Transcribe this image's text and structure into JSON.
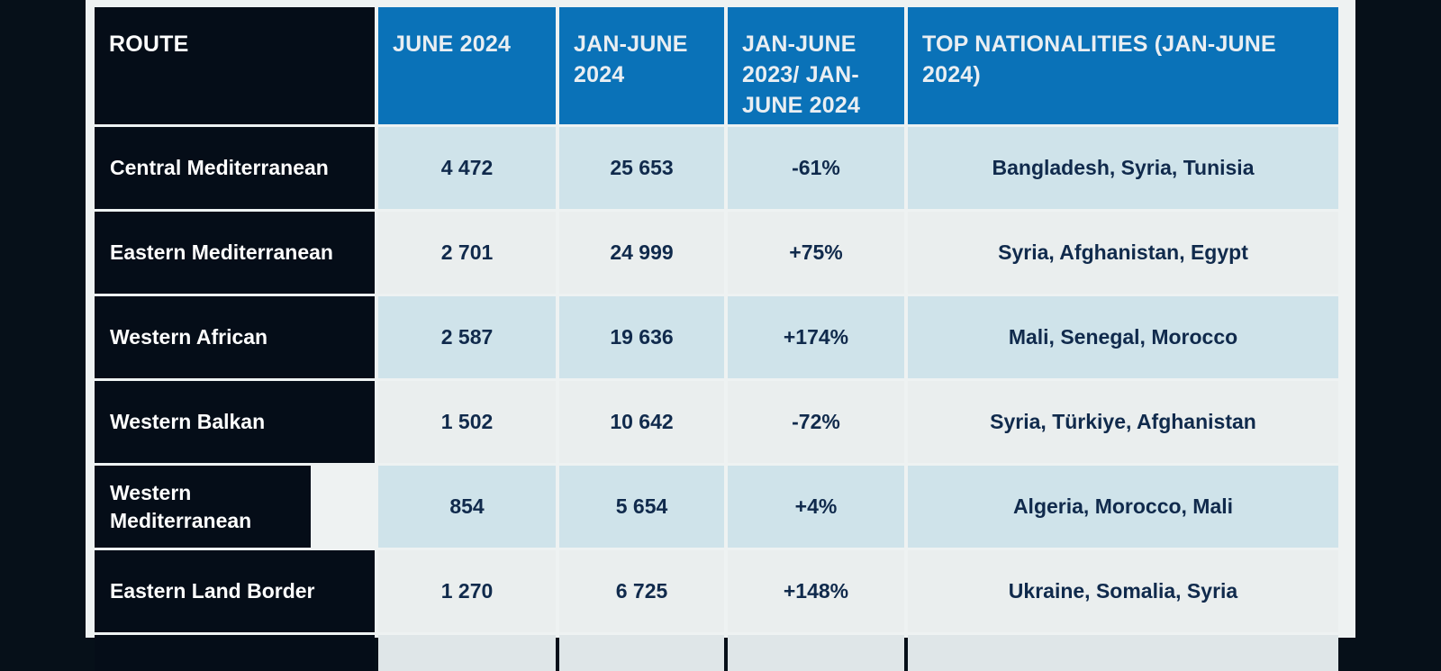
{
  "table": {
    "headers": [
      "ROUTE",
      "JUNE 2024",
      "JAN-JUNE 2024",
      "JAN-JUNE 2023/ JAN-JUNE 2024",
      "TOP NATIONALITIES (JAN-JUNE 2024)"
    ],
    "rows": [
      {
        "route": "Central Mediterranean",
        "june": "4 472",
        "janjune": "25 653",
        "change": "-61%",
        "nationalities": "Bangladesh, Syria, Tunisia"
      },
      {
        "route": "Eastern Mediterranean",
        "june": "2 701",
        "janjune": "24 999",
        "change": "+75%",
        "nationalities": "Syria, Afghanistan, Egypt"
      },
      {
        "route": "Western African",
        "june": "2 587",
        "janjune": "19 636",
        "change": "+174%",
        "nationalities": "Mali, Senegal, Morocco"
      },
      {
        "route": "Western Balkan",
        "june": "1 502",
        "janjune": "10 642",
        "change": "-72%",
        "nationalities": "Syria, Türkiye, Afghanistan"
      },
      {
        "route": "Western Mediterranean",
        "june": "854",
        "janjune": "5 654",
        "change": "+4%",
        "nationalities": "Algeria, Morocco, Mali"
      },
      {
        "route": "Eastern Land Border",
        "june": "1 270",
        "janjune": "6 725",
        "change": "+148%",
        "nationalities": "Ukraine, Somalia, Syria"
      }
    ]
  },
  "colors": {
    "header_blue": "#0a72b8",
    "route_dark": "#050d18",
    "row_light_blue": "#cfe3ea",
    "row_light_gray": "#eaeeee",
    "value_text": "#102a4c"
  }
}
